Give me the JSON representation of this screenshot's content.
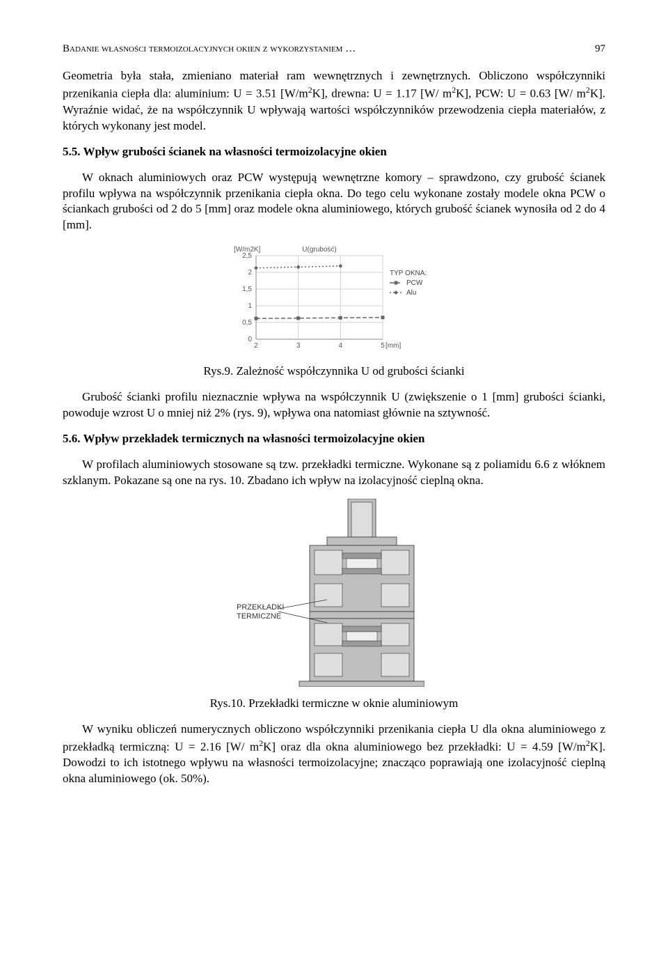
{
  "header": {
    "running_title": "Badanie własności termoizolacyjnych okien z wykorzystaniem …",
    "page_number": "97"
  },
  "para1_pre": "Geometria była stała, zmieniano materiał ram wewnętrznych i zewnętrznych. Obliczono współczynniki przenikania ciepła dla: aluminium: U = 3.51 [W/m",
  "para1_mid1": "K],   drewna:  U  =  1.17  [W/ m",
  "para1_mid2": "K],  PCW:  U  =  0.63  [W/ m",
  "para1_post": "K]. Wyraźnie widać, że na współczynnik U wpływają wartości współczynników przewodzenia ciepła materiałów, z których wykonany jest model.",
  "section55_title": "5.5. Wpływ grubości ścianek na własności termoizolacyjne okien",
  "para55": "W oknach aluminiowych oraz PCW występują wewnętrzne komory – sprawdzono, czy grubość ścianek profilu wpływa na współczynnik przenikania ciepła okna. Do tego celu wykonane zostały modele okna PCW o ściankach grubości od 2 do 5 [mm] oraz modele okna aluminiowego, których grubość ścianek wynosiła od 2 do 4 [mm].",
  "chart": {
    "type": "line",
    "title": "U(grubość)",
    "y_unit": "[W/m2K]",
    "x_unit": "[mm]",
    "xlim": [
      2,
      5
    ],
    "ylim": [
      0,
      2.5
    ],
    "ytick_step": 0.5,
    "xticks": [
      2,
      3,
      4,
      5
    ],
    "yticks": [
      0,
      0.5,
      1,
      1.5,
      2,
      2.5
    ],
    "ytick_labels": [
      "0",
      "0,5",
      "1",
      "1,5",
      "2",
      "2,5"
    ],
    "legend_title": "TYP OKNA:",
    "series": [
      {
        "name": "PCW",
        "marker": "square",
        "dash": "dash-pcw",
        "points": [
          [
            2,
            0.62
          ],
          [
            3,
            0.63
          ],
          [
            4,
            0.64
          ],
          [
            5,
            0.65
          ]
        ]
      },
      {
        "name": "Alu",
        "marker": "diamond",
        "dash": "dash-alu",
        "points": [
          [
            2,
            2.13
          ],
          [
            3,
            2.16
          ],
          [
            4,
            2.19
          ]
        ]
      }
    ],
    "grid_color": "#d0d0d0",
    "axis_color": "#8a8a8a",
    "series_color": "#666666",
    "background_color": "#ffffff",
    "label_fontsize": 10
  },
  "fig9_caption": "Rys.9. Zależność współczynnika U od grubości ścianki",
  "para_after_fig9": "Grubość ścianki profilu nieznacznie wpływa na współczynnik U (zwiększenie o 1 [mm] grubości ścianki, powoduje wzrost U o mniej niż 2% (rys. 9), wpływa ona natomiast głównie na sztywność.",
  "section56_title": "5.6. Wpływ przekładek termicznych na własności termoizolacyjne okien",
  "para56": "W profilach aluminiowych stosowane są tzw. przekładki termiczne. Wykonane są z poliamidu 6.6 z włóknem szklanym. Pokazane są one na rys. 10. Zbadano ich wpływ na izolacyjność cieplną okna.",
  "fig10_label": "PRZEKŁADKI\nTERMICZNE",
  "fig10_caption": "Rys.10. Przekładki termiczne w oknie aluminiowym",
  "para_after_fig10_pre": "W wyniku obliczeń numerycznych obliczono współczynniki przenikania ciepła U dla okna aluminiowego z przekładką termiczną: U = 2.16 [W/ m",
  "para_after_fig10_mid": "K] oraz dla okna aluminiowego bez przekładki:  U  =  4.59  [W/m",
  "para_after_fig10_post": "K]. Dowodzi to ich istotnego wpływu na własności termoizolacyjne; znacząco poprawiają one izolacyjność cieplną okna aluminiowego (ok. 50%)."
}
